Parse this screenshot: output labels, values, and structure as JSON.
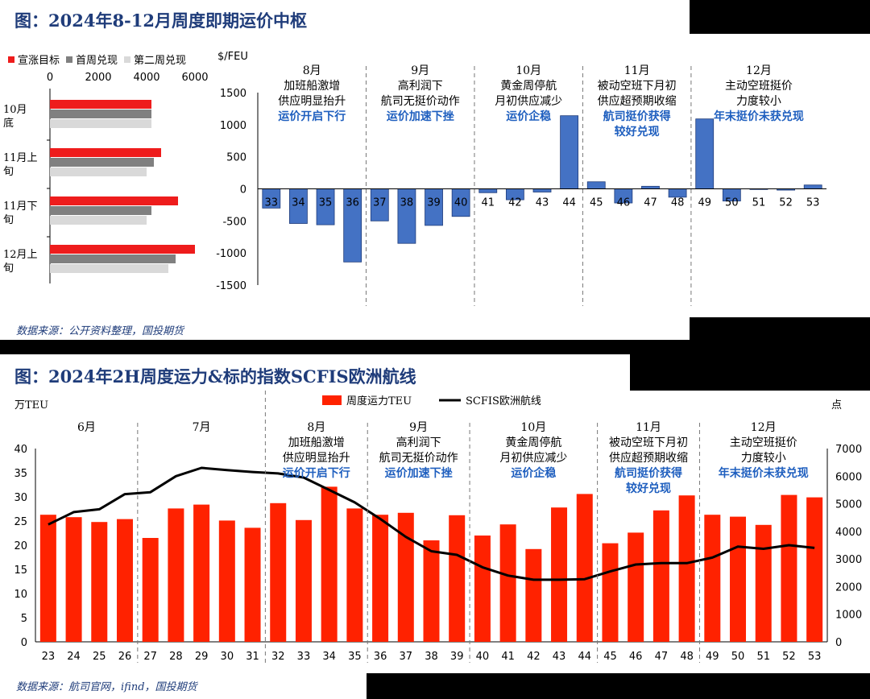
{
  "figure1": {
    "title": "图：2024年8-12月周度即期运价中枢",
    "source": "数据来源：公开资料整理，国投期货"
  },
  "figure2": {
    "title": "图：2024年2H周度运力&标的指数SCFIS欧洲航线",
    "source": "数据来源：航司官网，ifind，国投期货"
  },
  "chart_data": [
    {
      "type": "bar",
      "orientation": "horizontal",
      "categories": [
        "10月底",
        "11月上旬",
        "11月下旬",
        "12月上旬"
      ],
      "series": [
        {
          "name": "宣涨目标",
          "values": [
            4200,
            4600,
            5300,
            6000
          ],
          "color": "#ee1c1c"
        },
        {
          "name": "首周兑现",
          "values": [
            4200,
            4300,
            4200,
            5200
          ],
          "color": "#808080"
        },
        {
          "name": "第二周兑现",
          "values": [
            4200,
            4000,
            4000,
            4900
          ],
          "color": "#d9d9d9"
        }
      ],
      "xlim": [
        0,
        6000
      ],
      "xticks": [
        0,
        2000,
        4000,
        6000
      ],
      "legend": "top"
    },
    {
      "type": "bar",
      "ylabel": "$/FEU",
      "ylim": [
        -1500,
        1500
      ],
      "yticks": [
        1500,
        1000,
        500,
        0,
        -500,
        -1000,
        -1500
      ],
      "categories": [
        "33",
        "34",
        "35",
        "36",
        "37",
        "38",
        "39",
        "40",
        "41",
        "42",
        "43",
        "44",
        "45",
        "46",
        "47",
        "48",
        "49",
        "50",
        "51",
        "52",
        "53"
      ],
      "values": [
        -300,
        -540,
        -560,
        -1140,
        -500,
        -850,
        -570,
        -430,
        -60,
        -170,
        -50,
        1140,
        110,
        -220,
        40,
        -130,
        1090,
        -190,
        -10,
        -20,
        60
      ],
      "color": "#4472c4",
      "month_groups": [
        {
          "month": "8月",
          "lines": [
            "加班船激增",
            "供应明显抬升"
          ],
          "highlight": [
            "运价开启下行"
          ]
        },
        {
          "month": "9月",
          "lines": [
            "高利润下",
            "航司无挺价动作"
          ],
          "highlight": [
            "运价加速下挫"
          ]
        },
        {
          "month": "10月",
          "lines": [
            "黄金周停航",
            "月初供应减少"
          ],
          "highlight": [
            "运价企稳"
          ]
        },
        {
          "month": "11月",
          "lines": [
            "被动空班下月初",
            "供应超预期收缩"
          ],
          "highlight": [
            "航司挺价获得",
            "较好兑现"
          ]
        },
        {
          "month": "12月",
          "lines": [
            "主动空班挺价",
            "力度较小"
          ],
          "highlight": [
            "年末挺价未获兑现"
          ]
        }
      ]
    },
    {
      "type": "bar+line",
      "categories": [
        "23",
        "24",
        "25",
        "26",
        "27",
        "28",
        "29",
        "30",
        "31",
        "32",
        "33",
        "34",
        "35",
        "36",
        "37",
        "38",
        "39",
        "40",
        "41",
        "42",
        "43",
        "44",
        "45",
        "46",
        "47",
        "48",
        "49",
        "50",
        "51",
        "52",
        "53"
      ],
      "series": [
        {
          "name": "周度运力TEU",
          "type": "bar",
          "axis": "left",
          "color": "#ff2200",
          "values": [
            26.3,
            25.8,
            24.8,
            25.4,
            21.5,
            27.6,
            28.4,
            25.1,
            23.6,
            28.7,
            25.2,
            32.1,
            27.6,
            26.3,
            26.7,
            21.0,
            26.2,
            22.0,
            24.3,
            19.2,
            27.8,
            30.6,
            20.4,
            22.6,
            27.2,
            30.3,
            26.3,
            25.9,
            24.2,
            30.4,
            29.9
          ]
        },
        {
          "name": "SCFIS欧洲航线",
          "type": "line",
          "axis": "right",
          "color": "#000000",
          "values": [
            4250,
            4700,
            4800,
            5350,
            5420,
            6000,
            6300,
            6220,
            6150,
            6100,
            5950,
            5500,
            5050,
            4450,
            3800,
            3280,
            3150,
            2700,
            2400,
            2250,
            2250,
            2270,
            2550,
            2800,
            2850,
            2850,
            3050,
            3450,
            3370,
            3500,
            3400
          ]
        }
      ],
      "ylabel_left": "万TEU",
      "ylabel_right": "点",
      "ylim_left": [
        0,
        40
      ],
      "yticks_left": [
        0,
        5,
        10,
        15,
        20,
        25,
        30,
        35,
        40
      ],
      "ylim_right": [
        0,
        7000
      ],
      "yticks_right": [
        0,
        1000,
        2000,
        3000,
        4000,
        5000,
        6000,
        7000
      ],
      "legend": "top",
      "month_groups": [
        {
          "month": "6月",
          "lines": [],
          "highlight": []
        },
        {
          "month": "7月",
          "lines": [],
          "highlight": []
        },
        {
          "month": "8月",
          "lines": [
            "加班船激增",
            "供应明显抬升"
          ],
          "highlight": [
            "运价开启下行"
          ]
        },
        {
          "month": "9月",
          "lines": [
            "高利润下",
            "航司无挺价动作"
          ],
          "highlight": [
            "运价加速下挫"
          ]
        },
        {
          "month": "10月",
          "lines": [
            "黄金周停航",
            "月初供应减少"
          ],
          "highlight": [
            "运价企稳"
          ]
        },
        {
          "month": "11月",
          "lines": [
            "被动空班下月初",
            "供应超预期收缩"
          ],
          "highlight": [
            "航司挺价获得",
            "较好兑现"
          ]
        },
        {
          "month": "12月",
          "lines": [
            "主动空班挺价",
            "力度较小"
          ],
          "highlight": [
            "年末挺价未获兑现"
          ]
        }
      ]
    }
  ]
}
